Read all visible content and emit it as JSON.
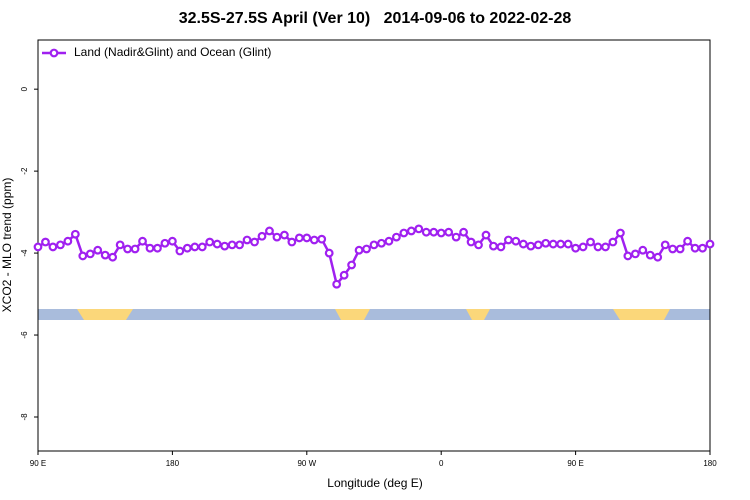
{
  "chart_data": {
    "type": "line",
    "title": "32.5S-27.5S April (Ver 10)   2014-09-06 to 2022-02-28",
    "x_label": "Longitude (deg E)",
    "y_label": "XCO2 - MLO trend (ppm)",
    "x": [
      90,
      95,
      100,
      105,
      110,
      115,
      120,
      125,
      130,
      135,
      140,
      145,
      150,
      155,
      160,
      165,
      170,
      175,
      180,
      185,
      190,
      195,
      200,
      205,
      210,
      215,
      220,
      225,
      230,
      235,
      240,
      245,
      250,
      255,
      260,
      265,
      270,
      275,
      280,
      285,
      290,
      295,
      300,
      305,
      310,
      315,
      320,
      325,
      330,
      335,
      340,
      345,
      350,
      355,
      360,
      365,
      370,
      375,
      380,
      385,
      390,
      395,
      400,
      405,
      410,
      415,
      420,
      425,
      430,
      435,
      440,
      445,
      450,
      455,
      460,
      465,
      470,
      475,
      480,
      485,
      490,
      495,
      500,
      505,
      510,
      515,
      520,
      525,
      530,
      535,
      540
    ],
    "series": [
      {
        "name": "Land (Nadir&Glint) and Ocean (Glint)",
        "color": "#a020f0",
        "values": [
          -3.85,
          -3.73,
          -3.85,
          -3.8,
          -3.71,
          -3.54,
          -4.07,
          -4.02,
          -3.93,
          -4.05,
          -4.1,
          -3.8,
          -3.9,
          -3.9,
          -3.71,
          -3.88,
          -3.88,
          -3.76,
          -3.71,
          -3.95,
          -3.88,
          -3.85,
          -3.85,
          -3.73,
          -3.78,
          -3.83,
          -3.8,
          -3.8,
          -3.68,
          -3.73,
          -3.59,
          -3.46,
          -3.61,
          -3.56,
          -3.73,
          -3.63,
          -3.63,
          -3.68,
          -3.66,
          -4,
          -4.76,
          -4.54,
          -4.29,
          -3.93,
          -3.9,
          -3.8,
          -3.76,
          -3.71,
          -3.61,
          -3.51,
          -3.46,
          -3.41,
          -3.49,
          -3.49,
          -3.51,
          -3.49,
          -3.61,
          -3.49,
          -3.73,
          -3.8,
          -3.56,
          -3.83,
          -3.85,
          -3.68,
          -3.71,
          -3.78,
          -3.83,
          -3.8,
          -3.76,
          -3.78,
          -3.78,
          -3.78,
          -3.88,
          -3.85,
          -3.73,
          -3.85,
          -3.85,
          -3.73,
          -3.51,
          -4.07,
          -4.02,
          -3.93,
          -4.05,
          -4.1,
          -3.8,
          -3.9,
          -3.9,
          -3.71,
          -3.88,
          -3.88,
          -3.78
        ]
      }
    ],
    "xlim": [
      90,
      540
    ],
    "xticks": [
      {
        "value": 90,
        "label": "90 E"
      },
      180,
      {
        "value": 270,
        "label": "90 W"
      },
      {
        "value": 360,
        "label": "0"
      },
      {
        "value": 450,
        "label": "90 E"
      },
      {
        "value": 540,
        "label": "180"
      }
    ],
    "ylim": [
      -8.83,
      1.2
    ],
    "yticks": [
      0,
      -2,
      -4,
      -6,
      -8
    ],
    "grid": false,
    "legend_position": "top-left"
  }
}
